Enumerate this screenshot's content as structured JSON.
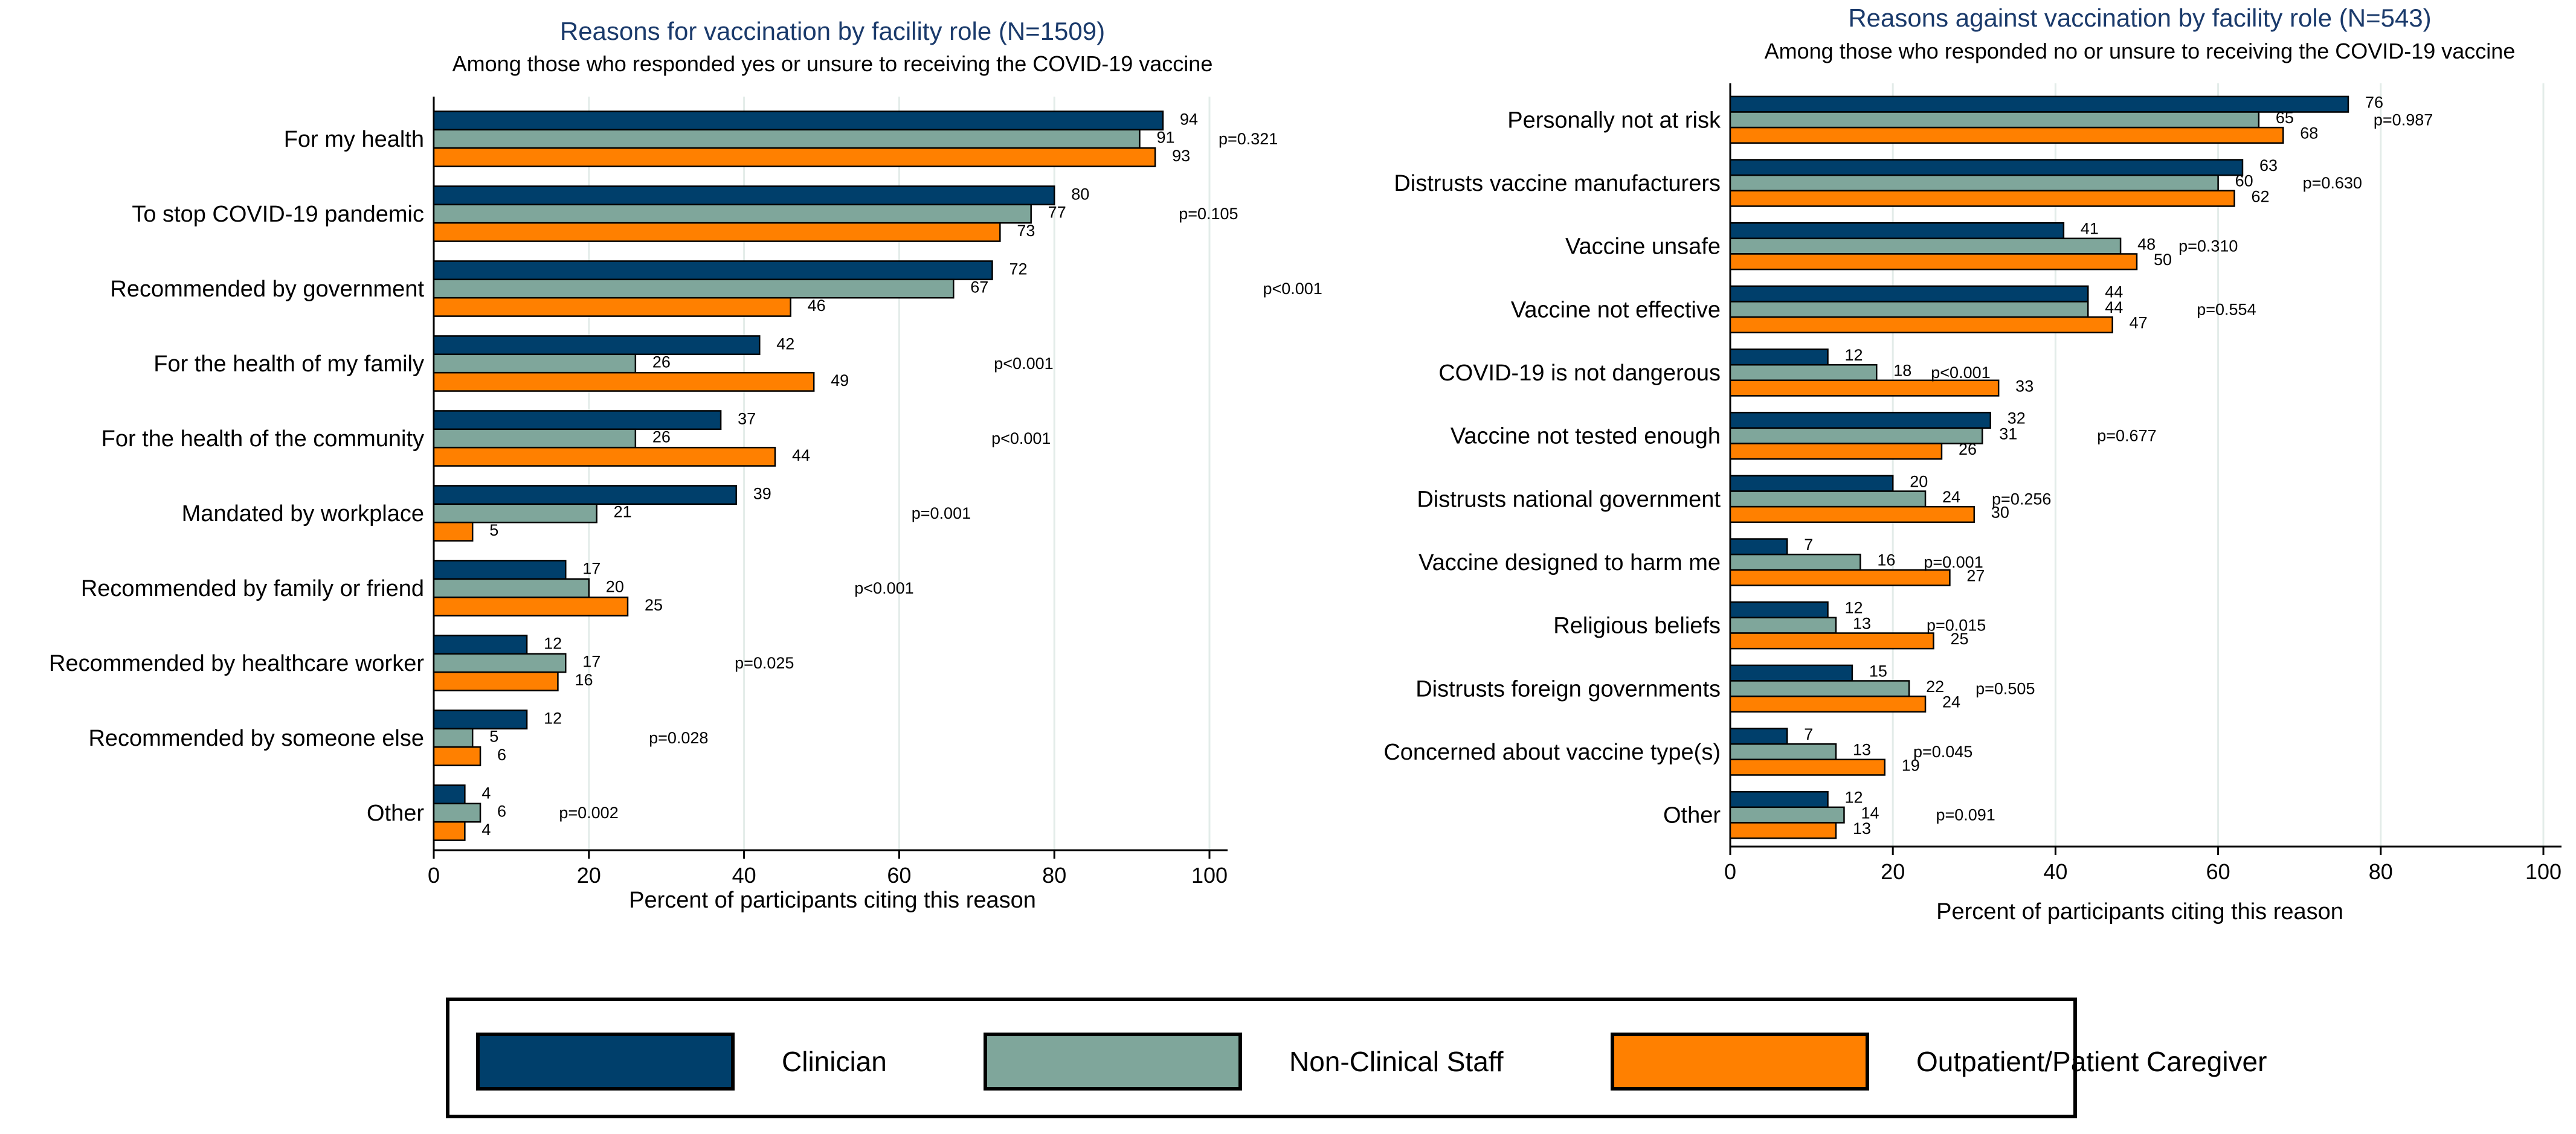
{
  "series_colors": {
    "Clinician": "#003f6b",
    "Non-Clinical Staff": "#7fa69b",
    "Outpatient/Patient Caregiver": "#ff8000"
  },
  "title_color": "#1a3a6b",
  "legend": {
    "items": [
      {
        "label": "Clinician",
        "color": "#003f6b"
      },
      {
        "label": "Non-Clinical Staff",
        "color": "#7fa69b"
      },
      {
        "label": "Outpatient/Patient Caregiver",
        "color": "#ff8000"
      }
    ]
  },
  "chart_data": [
    {
      "type": "bar",
      "orientation": "horizontal",
      "title": "Reasons for vaccination by facility role (N=1509)",
      "subtitle": "Among those who responded yes or unsure to receiving the COVID-19 vaccine",
      "xlabel": "Percent of participants citing this reason",
      "ylabel": "",
      "xlim": [
        0,
        100
      ],
      "xticks": [
        "0",
        "20",
        "40",
        "60",
        "80",
        "100"
      ],
      "categories": [
        "For my health",
        "To stop COVID-19 pandemic",
        "Recommended by government",
        "For the health of my family",
        "For the health of the community",
        "Mandated by workplace",
        "Recommended by family or friend",
        "Recommended by healthcare worker",
        "Recommended by someone else",
        "Other"
      ],
      "series": [
        {
          "name": "Clinician",
          "values": [
            94,
            80,
            72,
            42,
            37,
            39,
            17,
            12,
            12,
            4
          ]
        },
        {
          "name": "Non-Clinical Staff",
          "values": [
            91,
            77,
            67,
            26,
            26,
            21,
            20,
            17,
            5,
            6
          ]
        },
        {
          "name": "Outpatient/Patient Caregiver",
          "values": [
            93,
            73,
            46,
            49,
            44,
            5,
            25,
            16,
            6,
            4
          ]
        }
      ],
      "pvalues": [
        "p=0.321",
        "p=0.105",
        "p<0.001",
        "p<0.001",
        "p<0.001",
        "p=0.001",
        "p<0.001",
        "p=0.025",
        "p=0.028",
        "p=0.002"
      ],
      "grid": true
    },
    {
      "type": "bar",
      "orientation": "horizontal",
      "title": "Reasons against vaccination by facility role (N=543)",
      "subtitle": "Among those who responded no or unsure to receiving the COVID-19 vaccine",
      "xlabel": "Percent of participants citing this reason",
      "ylabel": "",
      "xlim": [
        0,
        100
      ],
      "xticks": [
        "0",
        "20",
        "40",
        "60",
        "80",
        "100"
      ],
      "categories": [
        "Personally not at risk",
        "Distrusts vaccine manufacturers",
        "Vaccine unsafe",
        "Vaccine not effective",
        "COVID-19 is not dangerous",
        "Vaccine not tested enough",
        "Distrusts national government",
        "Vaccine designed to harm me",
        "Religious beliefs",
        "Distrusts foreign governments",
        "Concerned about vaccine type(s)",
        "Other"
      ],
      "series": [
        {
          "name": "Clinician",
          "values": [
            76,
            63,
            41,
            44,
            12,
            32,
            20,
            7,
            12,
            15,
            7,
            12
          ]
        },
        {
          "name": "Non-Clinical Staff",
          "values": [
            65,
            60,
            48,
            44,
            18,
            31,
            24,
            16,
            13,
            22,
            13,
            14
          ]
        },
        {
          "name": "Outpatient/Patient Caregiver",
          "values": [
            68,
            62,
            50,
            47,
            33,
            26,
            30,
            27,
            25,
            24,
            19,
            13
          ]
        }
      ],
      "pvalues": [
        "p=0.987",
        "p=0.630",
        "p=0.310",
        "p=0.554",
        "p<0.001",
        "p=0.677",
        "p=0.256",
        "p=0.001",
        "p=0.015",
        "p=0.505",
        "p=0.045",
        "p=0.091"
      ],
      "grid": true
    }
  ]
}
